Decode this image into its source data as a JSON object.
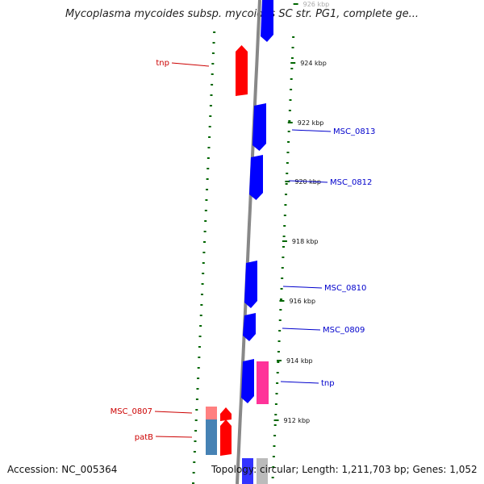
{
  "title": "Mycoplasma mycoides subsp. mycoides SC str. PG1, complete ge...",
  "footer": {
    "accession": "Accession: NC_005364",
    "topology": "Topology: circular; Length: 1,211,703 bp; Genes: 1,052"
  },
  "colors": {
    "forward_gene": "#0000ff",
    "reverse_gene": "#ff0000",
    "rna_gene": "#ff3399",
    "pseudo_gene": "#ff8080",
    "misc_feature": "#4682b4",
    "backbone": "#888888",
    "tick": "#006600",
    "kbp_label": "#111111",
    "right_label": "#0000cc",
    "left_label": "#cc0000"
  },
  "kbp_ticks": [
    {
      "label": "926 kbp",
      "faded": true
    },
    {
      "label": "924 kbp"
    },
    {
      "label": "922 kbp"
    },
    {
      "label": "920 kbp"
    },
    {
      "label": "918 kbp"
    },
    {
      "label": "916 kbp"
    },
    {
      "label": "914 kbp"
    },
    {
      "label": "912 kbp"
    }
  ],
  "gene_labels": [
    {
      "label": "tnp",
      "side": "left"
    },
    {
      "label": "MSC_0813",
      "side": "right"
    },
    {
      "label": "MSC_0812",
      "side": "right"
    },
    {
      "label": "MSC_0810",
      "side": "right"
    },
    {
      "label": "MSC_0809",
      "side": "right"
    },
    {
      "label": "tnp",
      "side": "right"
    },
    {
      "label": "MSC_0807",
      "side": "left"
    },
    {
      "label": "patB",
      "side": "left"
    }
  ]
}
